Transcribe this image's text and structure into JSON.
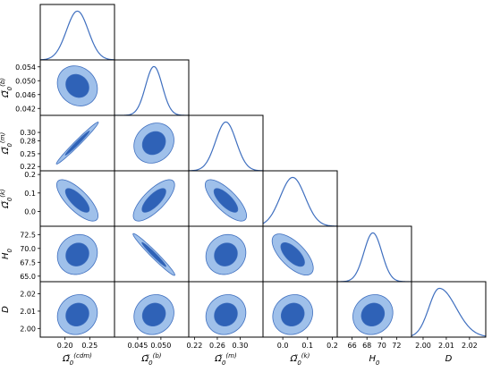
{
  "chart_data": {
    "type": "corner",
    "grid": false,
    "colors": {
      "line": "#3f6fbf",
      "inner_fill": "#2f62b7",
      "outer_fill": "#9fc0ea",
      "outline": "#3f6fbf"
    },
    "parameters": [
      {
        "name": "Omega_cdm",
        "label_base": "Ω̃",
        "label_sub": "0",
        "label_sup": "(cdm)",
        "range": [
          0.15,
          0.3
        ],
        "ticks": [
          "0.20",
          "0.25"
        ],
        "tick_values": [
          0.2,
          0.25
        ]
      },
      {
        "name": "Omega_b",
        "label_base": "Ω̃",
        "label_sub": "0",
        "label_sup": "(b)",
        "range": [
          0.04,
          0.056
        ],
        "ticks": [
          "0.042",
          "0.046",
          "0.050",
          "0.054"
        ],
        "tick_values": [
          0.042,
          0.046,
          0.05,
          0.054
        ],
        "xticks": [
          "0.045",
          "0.050"
        ],
        "xtick_values": [
          0.045,
          0.05
        ]
      },
      {
        "name": "Omega_m",
        "label_base": "Ω̃",
        "label_sub": "0",
        "label_sup": "(m)",
        "range": [
          0.21,
          0.34
        ],
        "ticks": [
          "0.22",
          "0.25",
          "0.28",
          "0.30"
        ],
        "tick_values": [
          0.22,
          0.25,
          0.28,
          0.3
        ],
        "xticks": [
          "0.22",
          "0.26",
          "0.30"
        ],
        "xtick_values": [
          0.22,
          0.26,
          0.3
        ]
      },
      {
        "name": "Omega_k",
        "label_base": "Ω̃",
        "label_sub": "0",
        "label_sup": "(k)",
        "range": [
          -0.08,
          0.22
        ],
        "ticks": [
          "0.0",
          "0.1",
          "0.2"
        ],
        "tick_values": [
          0.0,
          0.1,
          0.2
        ],
        "xticks": [
          "0.0",
          "0.1",
          "0.2"
        ],
        "xtick_values": [
          0.0,
          0.1,
          0.2
        ]
      },
      {
        "name": "H0",
        "label_base": "H",
        "label_sub": "0",
        "label_sup": "",
        "range": [
          64,
          74
        ],
        "ticks": [
          "65.0",
          "67.5",
          "70.0",
          "72.5"
        ],
        "tick_values": [
          65.0,
          67.5,
          70.0,
          72.5
        ],
        "xticks": [
          "66",
          "68",
          "70",
          "72"
        ],
        "xtick_values": [
          66,
          68,
          70,
          72
        ]
      },
      {
        "name": "D",
        "label_base": "D",
        "label_sub": "",
        "label_sup": "",
        "range": [
          1.995,
          2.027
        ],
        "ticks": [
          "2.00",
          "2.01",
          "2.02"
        ],
        "tick_values": [
          2.0,
          2.01,
          2.02
        ],
        "xticks": [
          "2.00",
          "2.01",
          "2.02"
        ],
        "xtick_values": [
          2.0,
          2.01,
          2.02
        ]
      }
    ],
    "marginals": [
      {
        "mean": 0.225,
        "sigma": 0.022,
        "skew": 0
      },
      {
        "mean": 0.0485,
        "sigma": 0.0018,
        "skew": 0
      },
      {
        "mean": 0.275,
        "sigma": 0.018,
        "skew": 0
      },
      {
        "mean": 0.04,
        "sigma": 0.05,
        "skew": 0
      },
      {
        "mean": 68.8,
        "sigma": 1.2,
        "skew": 0
      },
      {
        "mean": 2.007,
        "sigma": 0.0045,
        "skew": 0.6
      }
    ],
    "contours": [
      {
        "x": 0,
        "y": 1,
        "center": [
          0.225,
          0.0485
        ],
        "rho": -0.05
      },
      {
        "x": 0,
        "y": 2,
        "center": [
          0.225,
          0.275
        ],
        "rho": 0.99
      },
      {
        "x": 1,
        "y": 2,
        "center": [
          0.0485,
          0.275
        ],
        "rho": 0.05
      },
      {
        "x": 0,
        "y": 3,
        "center": [
          0.225,
          0.06
        ],
        "rho": -0.7
      },
      {
        "x": 1,
        "y": 3,
        "center": [
          0.0485,
          0.06
        ],
        "rho": 0.7
      },
      {
        "x": 2,
        "y": 3,
        "center": [
          0.275,
          0.06
        ],
        "rho": -0.7
      },
      {
        "x": 0,
        "y": 4,
        "center": [
          0.225,
          68.9
        ],
        "rho": 0.0
      },
      {
        "x": 1,
        "y": 4,
        "center": [
          0.0485,
          68.9
        ],
        "rho": -0.97
      },
      {
        "x": 2,
        "y": 4,
        "center": [
          0.275,
          68.9
        ],
        "rho": 0.0
      },
      {
        "x": 3,
        "y": 4,
        "center": [
          0.04,
          68.9
        ],
        "rho": -0.6
      },
      {
        "x": 0,
        "y": 5,
        "center": [
          0.225,
          2.008
        ],
        "rho": 0.0
      },
      {
        "x": 1,
        "y": 5,
        "center": [
          0.0485,
          2.008
        ],
        "rho": 0.0
      },
      {
        "x": 2,
        "y": 5,
        "center": [
          0.275,
          2.008
        ],
        "rho": 0.0
      },
      {
        "x": 3,
        "y": 5,
        "center": [
          0.04,
          2.008
        ],
        "rho": 0.0
      },
      {
        "x": 4,
        "y": 5,
        "center": [
          68.8,
          2.008
        ],
        "rho": 0.0
      }
    ]
  }
}
